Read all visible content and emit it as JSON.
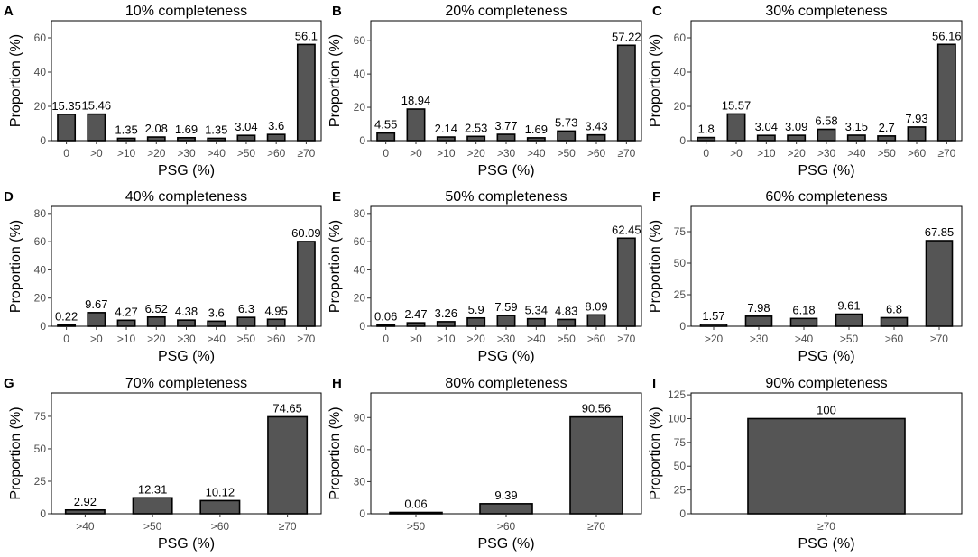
{
  "chart_data": [
    {
      "letter": "A",
      "type": "bar",
      "title": "10% completeness",
      "xlabel": "PSG (%)",
      "ylabel": "Proportion (%)",
      "categories": [
        "0",
        ">0",
        ">10",
        ">20",
        ">30",
        ">40",
        ">50",
        ">60",
        "≥70"
      ],
      "values": [
        15.35,
        15.46,
        1.35,
        2.08,
        1.69,
        1.35,
        3.04,
        3.6,
        56.1
      ],
      "labels": [
        "15.35",
        "15.46",
        "1.35",
        "2.08",
        "1.69",
        "1.35",
        "3.04",
        "3.6",
        "56.1"
      ],
      "ylim": [
        0,
        70
      ],
      "yticks": [
        0,
        20,
        40,
        60
      ],
      "grid": false
    },
    {
      "letter": "B",
      "type": "bar",
      "title": "20% completeness",
      "xlabel": "PSG (%)",
      "ylabel": "Proportion (%)",
      "categories": [
        "0",
        ">0",
        ">10",
        ">20",
        ">30",
        ">40",
        ">50",
        ">60",
        "≥70"
      ],
      "values": [
        4.55,
        18.94,
        2.14,
        2.53,
        3.77,
        1.69,
        5.73,
        3.43,
        57.22
      ],
      "labels": [
        "4.55",
        "18.94",
        "2.14",
        "2.53",
        "3.77",
        "1.69",
        "5.73",
        "3.43",
        "57.22"
      ],
      "ylim": [
        0,
        72
      ],
      "yticks": [
        0,
        20,
        40,
        60
      ],
      "grid": false
    },
    {
      "letter": "C",
      "type": "bar",
      "title": "30% completeness",
      "xlabel": "PSG (%)",
      "ylabel": "Proportion (%)",
      "categories": [
        "0",
        ">0",
        ">10",
        ">20",
        ">30",
        ">40",
        ">50",
        ">60",
        "≥70"
      ],
      "values": [
        1.8,
        15.57,
        3.04,
        3.09,
        6.58,
        3.15,
        2.7,
        7.93,
        56.16
      ],
      "labels": [
        "1.8",
        "15.57",
        "3.04",
        "3.09",
        "6.58",
        "3.15",
        "2.7",
        "7.93",
        "56.16"
      ],
      "ylim": [
        0,
        70
      ],
      "yticks": [
        0,
        20,
        40,
        60
      ],
      "grid": false
    },
    {
      "letter": "D",
      "type": "bar",
      "title": "40% completeness",
      "xlabel": "PSG (%)",
      "ylabel": "Proportion (%)",
      "categories": [
        "0",
        ">0",
        ">10",
        ">20",
        ">30",
        ">40",
        ">50",
        ">60",
        "≥70"
      ],
      "values": [
        0.22,
        9.67,
        4.27,
        6.52,
        4.38,
        3.6,
        6.3,
        4.95,
        60.09
      ],
      "labels": [
        "0.22",
        "9.67",
        "4.27",
        "6.52",
        "4.38",
        "3.6",
        "6.3",
        "4.95",
        "60.09"
      ],
      "ylim": [
        0,
        85
      ],
      "yticks": [
        0,
        20,
        40,
        60,
        80
      ],
      "grid": false
    },
    {
      "letter": "E",
      "type": "bar",
      "title": "50% completeness",
      "xlabel": "PSG (%)",
      "ylabel": "Proportion (%)",
      "categories": [
        "0",
        ">0",
        ">10",
        ">20",
        ">30",
        ">40",
        ">50",
        ">60",
        "≥70"
      ],
      "values": [
        0.06,
        2.47,
        3.26,
        5.9,
        7.59,
        5.34,
        4.83,
        8.09,
        62.45
      ],
      "labels": [
        "0.06",
        "2.47",
        "3.26",
        "5.9",
        "7.59",
        "5.34",
        "4.83",
        "8.09",
        "62.45"
      ],
      "ylim": [
        0,
        85
      ],
      "yticks": [
        0,
        20,
        40,
        60,
        80
      ],
      "grid": false
    },
    {
      "letter": "F",
      "type": "bar",
      "title": "60% completeness",
      "xlabel": "PSG (%)",
      "ylabel": "Proportion (%)",
      "categories": [
        ">20",
        ">30",
        ">40",
        ">50",
        ">60",
        "≥70"
      ],
      "values": [
        1.57,
        7.98,
        6.18,
        9.61,
        6.8,
        67.85
      ],
      "labels": [
        "1.57",
        "7.98",
        "6.18",
        "9.61",
        "6.8",
        "67.85"
      ],
      "ylim": [
        0,
        95
      ],
      "yticks": [
        0,
        25,
        50,
        75
      ],
      "grid": false
    },
    {
      "letter": "G",
      "type": "bar",
      "title": "70% completeness",
      "xlabel": "PSG (%)",
      "ylabel": "Proportion (%)",
      "categories": [
        ">40",
        ">50",
        ">60",
        "≥70"
      ],
      "values": [
        2.92,
        12.31,
        10.12,
        74.65
      ],
      "labels": [
        "2.92",
        "12.31",
        "10.12",
        "74.65"
      ],
      "ylim": [
        0,
        93
      ],
      "yticks": [
        0,
        25,
        50,
        75
      ],
      "grid": false
    },
    {
      "letter": "H",
      "type": "bar",
      "title": "80% completeness",
      "xlabel": "PSG (%)",
      "ylabel": "Proportion (%)",
      "categories": [
        ">50",
        ">60",
        "≥70"
      ],
      "values": [
        0.06,
        9.39,
        90.56
      ],
      "labels": [
        "0.06",
        "9.39",
        "90.56"
      ],
      "ylim": [
        0,
        113
      ],
      "yticks": [
        0,
        30,
        60,
        90
      ],
      "grid": false
    },
    {
      "letter": "I",
      "type": "bar",
      "title": "90% completeness",
      "xlabel": "PSG (%)",
      "ylabel": "Proportion (%)",
      "categories": [
        "≥70"
      ],
      "values": [
        100
      ],
      "labels": [
        "100"
      ],
      "ylim": [
        0,
        127
      ],
      "yticks": [
        0,
        25,
        50,
        75,
        100,
        125
      ],
      "grid": false
    }
  ]
}
